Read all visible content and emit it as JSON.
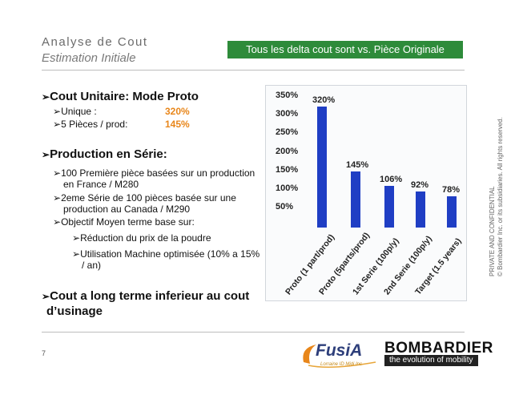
{
  "header": {
    "title": "Analyse de Cout",
    "subtitle": "Estimation Initiale",
    "callout": "Tous les delta cout sont  vs. Pièce Originale"
  },
  "content": {
    "marker": "➢",
    "s1": {
      "heading": "Cout Unitaire: Mode Proto",
      "rows": [
        {
          "label": "Unique :",
          "value": "320%"
        },
        {
          "label": "5 Pièces / prod:",
          "value": "145%"
        }
      ]
    },
    "s2": {
      "heading": "Production en Série:",
      "b1_l1": "100 Première pièce basées sur un production",
      "b1_l2": "en France / M280",
      "b2_l1": "2eme Série de 100 pièces basée sur une",
      "b2_l2": "production au Canada / M290",
      "b3": "Objectif Moyen terme base sur:",
      "c1": "Réduction du prix de la poudre",
      "c2_l1": "Utilisation Machine optimisée (10% a 15%",
      "c2_l2": "/ an)"
    },
    "s3": {
      "l1": "Cout a long terme inferieur au cout",
      "l2": "d’usinage"
    }
  },
  "chart_data": {
    "type": "bar",
    "categories": [
      "Proto (1 part/prod)",
      "Proto (5parts/prod)",
      "1st Serie (100p/y)",
      "2nd Serie (100p/y)",
      "Target (1.5 years)"
    ],
    "values": [
      320,
      145,
      106,
      92,
      78
    ],
    "value_labels": [
      "320%",
      "145%",
      "106%",
      "92%",
      "78%"
    ],
    "y_ticks": [
      "350%",
      "300%",
      "250%",
      "200%",
      "150%",
      "100%",
      "50%"
    ],
    "ylim": [
      50,
      350
    ],
    "bar_color": "#1f3ec4"
  },
  "footer": {
    "page": "7",
    "confidential_l1": "PRIVATE AND CONFIDENTIAL",
    "confidential_l2": "© Bombardier Inc. or its subsidiaries. All rights reserved.",
    "fusia": "FusiA",
    "fusia_sub": "Lorraine ID Midi Inc",
    "bombardier": "BOMBARDIER",
    "bombardier_tag": "the evolution of mobility"
  }
}
